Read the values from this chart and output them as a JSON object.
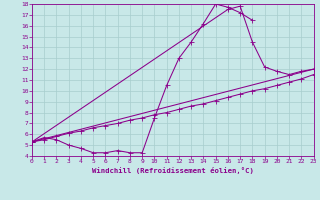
{
  "xlabel": "Windchill (Refroidissement éolien,°C)",
  "xlim": [
    0,
    23
  ],
  "ylim": [
    4,
    18
  ],
  "xticks": [
    0,
    1,
    2,
    3,
    4,
    5,
    6,
    7,
    8,
    9,
    10,
    11,
    12,
    13,
    14,
    15,
    16,
    17,
    18,
    19,
    20,
    21,
    22,
    23
  ],
  "yticks": [
    4,
    5,
    6,
    7,
    8,
    9,
    10,
    11,
    12,
    13,
    14,
    15,
    16,
    17,
    18
  ],
  "bg_color": "#c8e8e8",
  "line_color": "#8b008b",
  "grid_color": "#a8cece",
  "curve1_x": [
    0,
    1,
    2,
    3,
    4,
    5,
    6,
    7,
    8,
    9,
    10,
    11,
    12,
    13,
    14,
    15,
    16,
    17,
    18
  ],
  "curve1_y": [
    5.3,
    5.7,
    5.5,
    5.0,
    4.7,
    4.3,
    4.3,
    4.5,
    4.3,
    4.3,
    7.5,
    10.5,
    13.0,
    14.5,
    16.2,
    18.0,
    17.7,
    17.2,
    16.5
  ],
  "curve2_x": [
    0,
    16,
    17,
    18,
    19,
    20,
    21,
    22,
    23
  ],
  "curve2_y": [
    5.3,
    17.5,
    17.8,
    14.5,
    12.2,
    11.8,
    11.5,
    11.8,
    12.0
  ],
  "curve3_x": [
    0,
    1,
    2,
    3,
    4,
    5,
    6,
    7,
    8,
    9,
    10,
    11,
    12,
    13,
    14,
    15,
    16,
    17,
    18,
    19,
    20,
    21,
    22,
    23
  ],
  "curve3_y": [
    5.3,
    5.5,
    5.8,
    6.1,
    6.3,
    6.6,
    6.8,
    7.0,
    7.3,
    7.5,
    7.8,
    8.0,
    8.3,
    8.6,
    8.8,
    9.1,
    9.4,
    9.7,
    10.0,
    10.2,
    10.5,
    10.8,
    11.1,
    11.5
  ],
  "curve4_x": [
    0,
    23
  ],
  "curve4_y": [
    5.3,
    12.0
  ]
}
